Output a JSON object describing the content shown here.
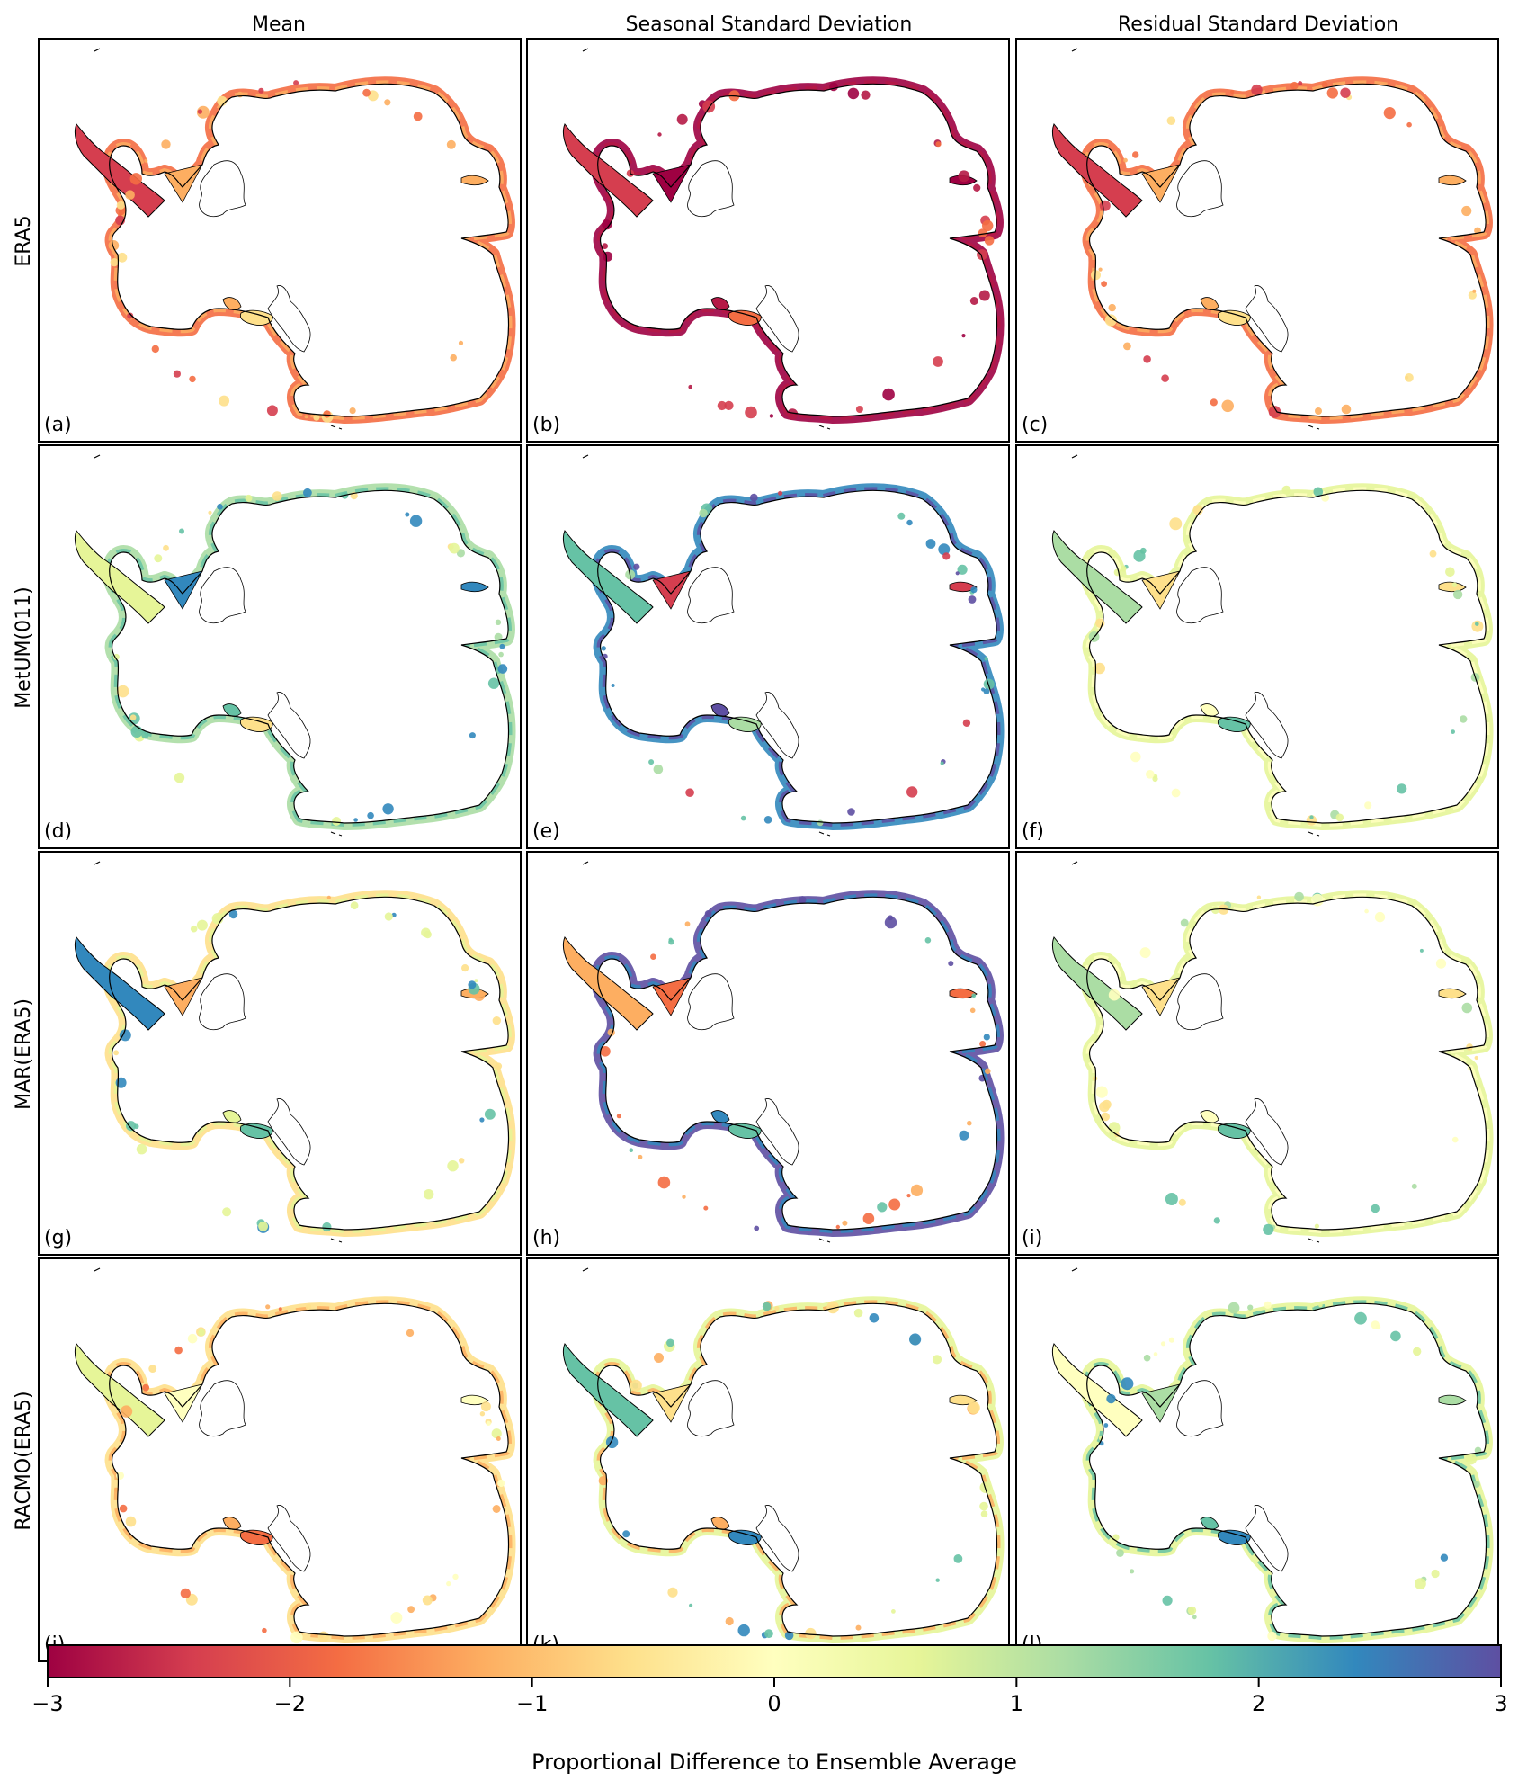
{
  "figure": {
    "columns": [
      "Mean",
      "Seasonal Standard Deviation",
      "Residual Standard Deviation"
    ],
    "rows": [
      "ERA5",
      "MetUM(011)",
      "MAR(ERA5)",
      "RACMO(ERA5)"
    ],
    "panels": [
      {
        "id": "(a)",
        "row": 0,
        "col": 0,
        "scheme": "red-orange"
      },
      {
        "id": "(b)",
        "row": 0,
        "col": 1,
        "scheme": "deep-red"
      },
      {
        "id": "(c)",
        "row": 0,
        "col": 2,
        "scheme": "red-orange"
      },
      {
        "id": "(d)",
        "row": 1,
        "col": 0,
        "scheme": "green-blue"
      },
      {
        "id": "(e)",
        "row": 1,
        "col": 1,
        "scheme": "blue-mixed"
      },
      {
        "id": "(f)",
        "row": 1,
        "col": 2,
        "scheme": "yellow-green"
      },
      {
        "id": "(g)",
        "row": 2,
        "col": 0,
        "scheme": "yellow-mixed"
      },
      {
        "id": "(h)",
        "row": 2,
        "col": 1,
        "scheme": "blue-orange"
      },
      {
        "id": "(i)",
        "row": 2,
        "col": 2,
        "scheme": "yellow-green"
      },
      {
        "id": "(j)",
        "row": 3,
        "col": 0,
        "scheme": "yellow-orange"
      },
      {
        "id": "(k)",
        "row": 3,
        "col": 1,
        "scheme": "mixed"
      },
      {
        "id": "(l)",
        "row": 3,
        "col": 2,
        "scheme": "yellow-teal"
      }
    ],
    "colorbar": {
      "label": "Proportional Difference to Ensemble Average",
      "min": -3,
      "max": 3,
      "ticks": [
        "−3",
        "−2",
        "−1",
        "0",
        "1",
        "2",
        "3"
      ],
      "colormap": "Spectral",
      "stops": [
        "#9e0142",
        "#d53e4f",
        "#f46d43",
        "#fdae61",
        "#fee08b",
        "#ffffbf",
        "#e6f598",
        "#abdda4",
        "#66c2a5",
        "#3288bd",
        "#5e4fa2"
      ]
    },
    "schemes": {
      "red-orange": [
        "#f46d43",
        "#fdae61",
        "#d53e4f",
        "#fdae61",
        "#fee08b"
      ],
      "deep-red": [
        "#9e0142",
        "#b51946",
        "#d53e4f",
        "#9e0142",
        "#f46d43"
      ],
      "green-blue": [
        "#abdda4",
        "#66c2a5",
        "#e6f598",
        "#3288bd",
        "#fee08b"
      ],
      "blue-mixed": [
        "#3288bd",
        "#5e4fa2",
        "#66c2a5",
        "#d53e4f",
        "#abdda4"
      ],
      "yellow-green": [
        "#e6f598",
        "#ffffbf",
        "#abdda4",
        "#fee08b",
        "#66c2a5"
      ],
      "yellow-mixed": [
        "#fee08b",
        "#e6f598",
        "#3288bd",
        "#fdae61",
        "#66c2a5"
      ],
      "blue-orange": [
        "#5e4fa2",
        "#3288bd",
        "#fdae61",
        "#f46d43",
        "#66c2a5"
      ],
      "yellow-orange": [
        "#fee08b",
        "#fdae61",
        "#e6f598",
        "#ffffbf",
        "#f46d43"
      ],
      "mixed": [
        "#e6f598",
        "#fdae61",
        "#66c2a5",
        "#fee08b",
        "#3288bd"
      ],
      "yellow-teal": [
        "#e6f598",
        "#66c2a5",
        "#ffffbf",
        "#abdda4",
        "#3288bd"
      ]
    }
  }
}
